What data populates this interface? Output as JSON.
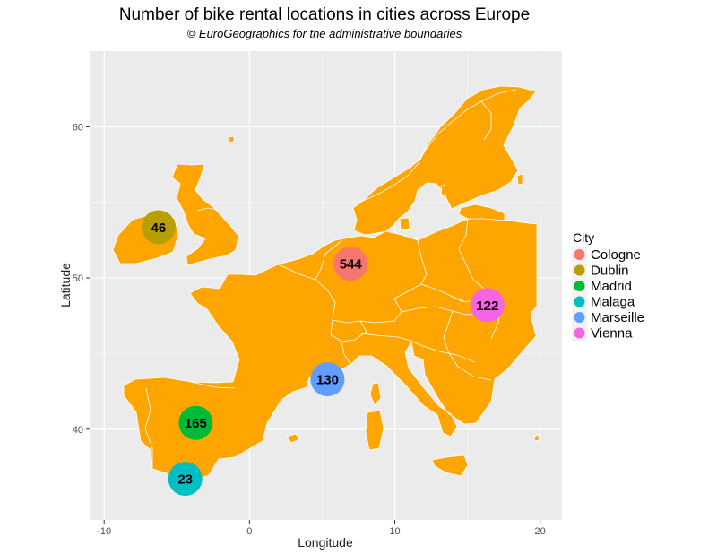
{
  "chart_data": {
    "type": "scatter",
    "title": "Number of bike rental locations in cities across Europe",
    "subtitle": "© EuroGeographics for the administrative boundaries",
    "xlabel": "Longitude",
    "ylabel": "Latitude",
    "xlim": [
      -11,
      21.5
    ],
    "ylim": [
      34,
      65
    ],
    "x_ticks": [
      -10,
      0,
      10,
      20
    ],
    "y_ticks": [
      40,
      50,
      60
    ],
    "grid": true,
    "land_color": "#ffa500",
    "panel_color": "#ebebeb",
    "legend": {
      "title": "City",
      "placement": "right"
    },
    "series": [
      {
        "name": "Cologne",
        "x": 6.96,
        "y": 50.94,
        "value": 544,
        "color": "#f8766d"
      },
      {
        "name": "Dublin",
        "x": -6.26,
        "y": 53.35,
        "value": 46,
        "color": "#b79f00"
      },
      {
        "name": "Madrid",
        "x": -3.7,
        "y": 40.42,
        "value": 165,
        "color": "#00ba38"
      },
      {
        "name": "Malaga",
        "x": -4.42,
        "y": 36.72,
        "value": 23,
        "color": "#00bfc4"
      },
      {
        "name": "Marseille",
        "x": 5.37,
        "y": 43.3,
        "value": 130,
        "color": "#619cff"
      },
      {
        "name": "Vienna",
        "x": 16.37,
        "y": 48.21,
        "value": 122,
        "color": "#f564e3"
      }
    ]
  }
}
